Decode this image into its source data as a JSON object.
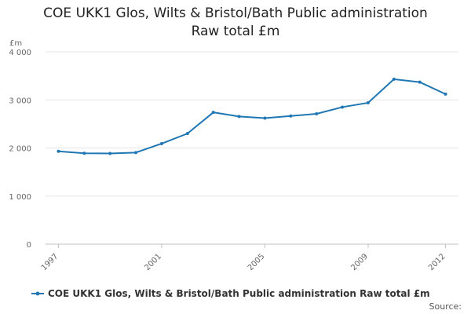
{
  "chart_data": {
    "type": "line",
    "title_line1": "COE UKK1 Glos, Wilts & Bristol/Bath Public administration",
    "title_line2": "Raw total £m",
    "ylabel": "£m",
    "x": [
      1997,
      1998,
      1999,
      2000,
      2001,
      2002,
      2003,
      2004,
      2005,
      2006,
      2007,
      2008,
      2009,
      2010,
      2011,
      2012
    ],
    "x_tick_labels": [
      "1997",
      "2001",
      "2005",
      "2009",
      "2012"
    ],
    "y_tick_labels": [
      "0",
      "1 000",
      "2 000",
      "3 000",
      "4 000"
    ],
    "ylim": [
      0,
      4000
    ],
    "grid": true,
    "series": [
      {
        "name": "COE UKK1 Glos, Wilts & Bristol/Bath Public administration Raw total £m",
        "color": "#1f77b4",
        "values": [
          1930,
          1890,
          1885,
          1905,
          2090,
          2300,
          2740,
          2655,
          2620,
          2665,
          2710,
          2850,
          2940,
          3430,
          3370,
          3120
        ]
      }
    ],
    "legend_position": "bottom",
    "source_label": "Source:"
  }
}
